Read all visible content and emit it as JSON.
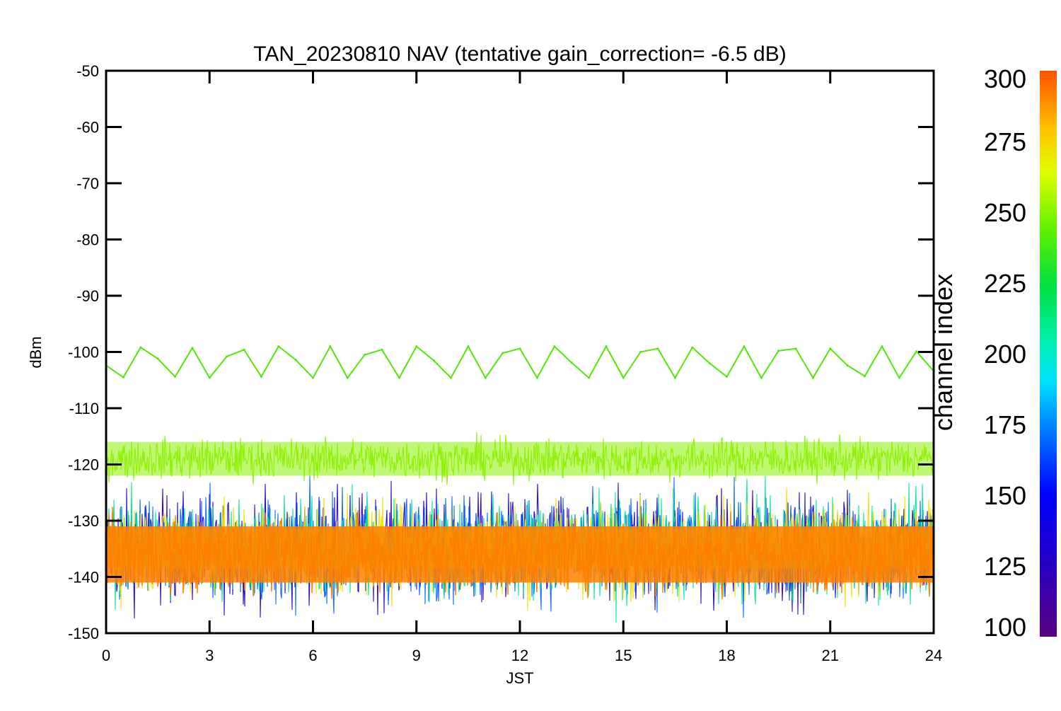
{
  "chart_data": {
    "type": "line",
    "title": "TAN_20230810 NAV (tentative gain_correction= -6.5 dB)",
    "xlabel": "JST",
    "ylabel": "dBm",
    "xlim": [
      0,
      24
    ],
    "ylim": [
      -150,
      -50
    ],
    "x_ticks": [
      "0",
      "3",
      "6",
      "9",
      "12",
      "15",
      "18",
      "21",
      "24"
    ],
    "y_ticks": [
      "-50",
      "-60",
      "-70",
      "-80",
      "-90",
      "-100",
      "-110",
      "-120",
      "-130",
      "-140",
      "-150"
    ],
    "grid": false,
    "colorbar": {
      "label": "channel index",
      "range": [
        100,
        300
      ],
      "ticks": [
        "300",
        "275",
        "250",
        "225",
        "200",
        "175",
        "150",
        "125",
        "100"
      ],
      "colormap": "rainbow"
    },
    "series": [
      {
        "channel": 250,
        "color": "#55e60a",
        "x": [
          0,
          0.5,
          1,
          1.5,
          2,
          2.5,
          3,
          3.5,
          4,
          4.5,
          5,
          5.5,
          6,
          6.5,
          7,
          7.5,
          8,
          8.5,
          9,
          9.5,
          10,
          10.5,
          11,
          11.5,
          12,
          12.5,
          13,
          13.5,
          14,
          14.5,
          15,
          15.5,
          16,
          16.5,
          17,
          17.5,
          18,
          18.5,
          19,
          19.5,
          20,
          20.5,
          21,
          21.5,
          22,
          22.5,
          23,
          23.5,
          24
        ],
        "y": [
          -102.4,
          -104.5,
          -99.2,
          -101.2,
          -104.4,
          -99.3,
          -104.6,
          -100.8,
          -99.6,
          -104.4,
          -99.0,
          -101.4,
          -104.6,
          -99.0,
          -104.6,
          -100.5,
          -99.6,
          -104.6,
          -99.0,
          -101.5,
          -104.6,
          -99.0,
          -104.6,
          -100.2,
          -99.4,
          -104.6,
          -99.0,
          -101.9,
          -104.6,
          -99.0,
          -104.6,
          -100.0,
          -99.4,
          -104.6,
          -99.2,
          -102.0,
          -104.4,
          -99.0,
          -104.6,
          -99.8,
          -99.4,
          -104.6,
          -99.4,
          -102.4,
          -104.3,
          -99.0,
          -104.6,
          -99.9,
          -103.4
        ]
      },
      {
        "channel": 260,
        "color": "#8cf000",
        "mean": -119,
        "spread": [
          -124,
          -114
        ]
      },
      {
        "channel": 285,
        "color": "#ff8000",
        "mean": -136,
        "spread": [
          -145,
          -127
        ]
      },
      {
        "channel": 270,
        "color": "#f0e000",
        "mean": -135,
        "spread": [
          -147,
          -124
        ]
      },
      {
        "channel": 200,
        "color": "#00e69a",
        "mean": -135,
        "spread": [
          -148,
          -123
        ]
      },
      {
        "channel": 150,
        "color": "#0066ff",
        "mean": -135,
        "spread": [
          -149,
          -123
        ]
      },
      {
        "channel": 120,
        "color": "#2000c8",
        "mean": -135,
        "spread": [
          -149,
          -122
        ]
      }
    ]
  }
}
